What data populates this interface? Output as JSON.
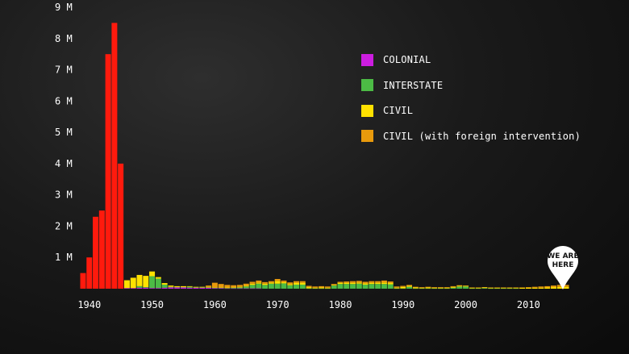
{
  "colors": {
    "ww2": "#ff1a0d",
    "colonial": "#cc1de0",
    "interstate": "#4cbb45",
    "civil": "#ffe100",
    "civil_foreign": "#e89a0c"
  },
  "legend": [
    {
      "label": "COLONIAL",
      "color": "#cc1de0"
    },
    {
      "label": "INTERSTATE",
      "color": "#4cbb45"
    },
    {
      "label": "CIVIL",
      "color": "#ffe100"
    },
    {
      "label": "CIVIL (with foreign intervention)",
      "color": "#e89a0c"
    }
  ],
  "marker": {
    "line1": "WE ARE",
    "line2": "HERE",
    "year": 2015
  },
  "chart_data": {
    "type": "bar",
    "stacked": true,
    "title": "",
    "xlabel": "",
    "ylabel": "",
    "ylim": [
      0,
      9000000
    ],
    "xlim": [
      1939,
      2017
    ],
    "y_ticks": [
      {
        "value": 1000000,
        "label": "1 M"
      },
      {
        "value": 2000000,
        "label": "2 M"
      },
      {
        "value": 3000000,
        "label": "3 M"
      },
      {
        "value": 4000000,
        "label": "4 M"
      },
      {
        "value": 5000000,
        "label": "5 M"
      },
      {
        "value": 6000000,
        "label": "6 M"
      },
      {
        "value": 7000000,
        "label": "7 M"
      },
      {
        "value": 8000000,
        "label": "8 M"
      },
      {
        "value": 9000000,
        "label": "9 M"
      }
    ],
    "x_ticks": [
      {
        "value": 1940,
        "label": "1940"
      },
      {
        "value": 1950,
        "label": "1950"
      },
      {
        "value": 1960,
        "label": "1960"
      },
      {
        "value": 1970,
        "label": "1970"
      },
      {
        "value": 1980,
        "label": "1980"
      },
      {
        "value": 1990,
        "label": "1990"
      },
      {
        "value": 2000,
        "label": "2000"
      },
      {
        "value": 2010,
        "label": "2010"
      }
    ],
    "x": [
      1939,
      1940,
      1941,
      1942,
      1943,
      1944,
      1945,
      1946,
      1947,
      1948,
      1949,
      1950,
      1951,
      1952,
      1953,
      1954,
      1955,
      1956,
      1957,
      1958,
      1959,
      1960,
      1961,
      1962,
      1963,
      1964,
      1965,
      1966,
      1967,
      1968,
      1969,
      1970,
      1971,
      1972,
      1973,
      1974,
      1975,
      1976,
      1977,
      1978,
      1979,
      1980,
      1981,
      1982,
      1983,
      1984,
      1985,
      1986,
      1987,
      1988,
      1989,
      1990,
      1991,
      1992,
      1993,
      1994,
      1995,
      1996,
      1997,
      1998,
      1999,
      2000,
      2001,
      2002,
      2003,
      2004,
      2005,
      2006,
      2007,
      2008,
      2009,
      2010,
      2011,
      2012,
      2013,
      2014,
      2015,
      2016
    ],
    "series": [
      {
        "key": "ww2",
        "color": "#ff1a0d",
        "values": [
          500000,
          1000000,
          2300000,
          2500000,
          7500000,
          8500000,
          4000000,
          0,
          0,
          0,
          0,
          0,
          0,
          0,
          0,
          0,
          0,
          0,
          0,
          0,
          0,
          0,
          0,
          0,
          0,
          0,
          0,
          0,
          0,
          0,
          0,
          0,
          0,
          0,
          0,
          0,
          0,
          0,
          0,
          0,
          0,
          0,
          0,
          0,
          0,
          0,
          0,
          0,
          0,
          0,
          0,
          0,
          0,
          0,
          0,
          0,
          0,
          0,
          0,
          0,
          0,
          0,
          0,
          0,
          0,
          0,
          0,
          0,
          0,
          0,
          0,
          0,
          0,
          0,
          0,
          0,
          0,
          0
        ]
      },
      {
        "key": "colonial",
        "name": "COLONIAL",
        "color": "#cc1de0",
        "values": [
          0,
          0,
          0,
          0,
          0,
          0,
          0,
          20000,
          20000,
          30000,
          30000,
          20000,
          20000,
          30000,
          40000,
          40000,
          40000,
          30000,
          30000,
          30000,
          30000,
          20000,
          20000,
          10000,
          10000,
          10000,
          10000,
          10000,
          10000,
          0,
          0,
          0,
          0,
          0,
          0,
          0,
          0,
          0,
          0,
          0,
          0,
          0,
          0,
          0,
          0,
          0,
          0,
          0,
          0,
          0,
          0,
          0,
          0,
          0,
          0,
          0,
          0,
          0,
          0,
          0,
          0,
          0,
          0,
          0,
          0,
          0,
          0,
          0,
          0,
          0,
          0,
          0,
          0,
          0,
          0,
          0,
          0,
          0
        ]
      },
      {
        "key": "interstate",
        "name": "INTERSTATE",
        "color": "#4cbb45",
        "values": [
          0,
          0,
          0,
          0,
          0,
          0,
          0,
          0,
          0,
          50000,
          20000,
          380000,
          300000,
          100000,
          20000,
          10000,
          10000,
          30000,
          10000,
          10000,
          10000,
          10000,
          10000,
          10000,
          20000,
          30000,
          60000,
          110000,
          150000,
          120000,
          160000,
          160000,
          170000,
          110000,
          130000,
          130000,
          10000,
          10000,
          10000,
          10000,
          100000,
          150000,
          150000,
          150000,
          160000,
          130000,
          150000,
          150000,
          150000,
          140000,
          10000,
          10000,
          60000,
          10000,
          10000,
          10000,
          10000,
          10000,
          10000,
          30000,
          70000,
          70000,
          10000,
          10000,
          20000,
          10000,
          10000,
          10000,
          10000,
          10000,
          0,
          0,
          0,
          0,
          0,
          0,
          0,
          0
        ]
      },
      {
        "key": "civil",
        "name": "CIVIL",
        "color": "#ffe100",
        "values": [
          0,
          0,
          0,
          0,
          0,
          0,
          0,
          250000,
          330000,
          360000,
          360000,
          150000,
          50000,
          50000,
          40000,
          30000,
          30000,
          20000,
          20000,
          20000,
          20000,
          20000,
          20000,
          20000,
          20000,
          20000,
          30000,
          40000,
          40000,
          40000,
          40000,
          90000,
          40000,
          40000,
          60000,
          60000,
          40000,
          20000,
          30000,
          20000,
          20000,
          40000,
          40000,
          40000,
          40000,
          40000,
          40000,
          40000,
          50000,
          40000,
          20000,
          50000,
          30000,
          30000,
          20000,
          30000,
          20000,
          20000,
          20000,
          30000,
          20000,
          20000,
          20000,
          20000,
          20000,
          20000,
          20000,
          20000,
          20000,
          20000,
          30000,
          30000,
          30000,
          30000,
          40000,
          50000,
          60000,
          60000
        ]
      },
      {
        "key": "civil_foreign",
        "name": "CIVIL (with foreign intervention)",
        "color": "#e89a0c",
        "values": [
          0,
          0,
          0,
          0,
          0,
          0,
          0,
          0,
          0,
          0,
          0,
          0,
          0,
          0,
          0,
          0,
          0,
          0,
          0,
          0,
          40000,
          140000,
          100000,
          80000,
          60000,
          60000,
          60000,
          60000,
          60000,
          50000,
          40000,
          60000,
          50000,
          50000,
          50000,
          50000,
          40000,
          40000,
          40000,
          40000,
          30000,
          30000,
          40000,
          50000,
          50000,
          50000,
          50000,
          50000,
          60000,
          50000,
          40000,
          30000,
          30000,
          20000,
          20000,
          20000,
          20000,
          20000,
          20000,
          20000,
          20000,
          10000,
          10000,
          10000,
          10000,
          10000,
          10000,
          10000,
          10000,
          10000,
          10000,
          20000,
          30000,
          40000,
          40000,
          50000,
          60000,
          60000
        ]
      }
    ]
  }
}
